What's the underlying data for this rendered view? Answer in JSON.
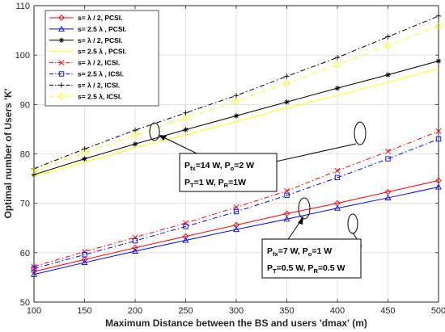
{
  "chart_data": {
    "type": "line",
    "xlabel": "Maximum Distance between the BS and users 'dmax' (m)",
    "ylabel": "Optimal number of Users 'K'",
    "xlim": [
      100,
      500
    ],
    "ylim": [
      50,
      110
    ],
    "xticks": [
      100,
      150,
      200,
      250,
      300,
      350,
      400,
      450,
      500
    ],
    "yticks": [
      50,
      60,
      70,
      80,
      90,
      100,
      110
    ],
    "xtick_labels": [
      "100",
      "150",
      "200",
      "250",
      "300",
      "350",
      "400",
      "450",
      "500"
    ],
    "ytick_labels": [
      "50",
      "60",
      "70",
      "80",
      "90",
      "100",
      "110"
    ],
    "grid": true,
    "legend_position": "top-left",
    "x": [
      100,
      150,
      200,
      250,
      300,
      350,
      400,
      450,
      500
    ],
    "series": [
      {
        "name": "s= λ / 2, PCSI.",
        "color": "#ff0000",
        "dash": "solid",
        "marker": "diamond",
        "values": [
          56.2,
          58.6,
          61.0,
          63.3,
          65.6,
          67.9,
          70.0,
          72.3,
          74.6
        ]
      },
      {
        "name": "s= 2.5 λ , PCSI.",
        "color": "#0000ff",
        "dash": "solid",
        "marker": "triangle",
        "values": [
          55.6,
          58.0,
          60.3,
          62.5,
          64.7,
          66.8,
          69.0,
          71.1,
          73.3
        ]
      },
      {
        "name": "s= λ / 2, PCSI.",
        "color": "#000000",
        "dash": "solid",
        "marker": "star",
        "values": [
          75.8,
          79.0,
          82.0,
          84.9,
          87.7,
          90.5,
          93.3,
          96.0,
          98.8
        ]
      },
      {
        "name": "s= 2.5 λ , PCSI.",
        "color": "#ffff00",
        "dash": "solid",
        "marker": "none",
        "values": [
          75.5,
          78.3,
          81.2,
          83.8,
          86.5,
          89.3,
          91.8,
          94.5,
          97.2
        ]
      },
      {
        "name": "s= λ / 2, ICSI.",
        "color": "#ff0000",
        "dash": "dashdot",
        "marker": "x",
        "values": [
          57.2,
          60.2,
          63.1,
          66.0,
          69.2,
          72.5,
          76.6,
          80.5,
          84.6
        ]
      },
      {
        "name": "s= 2.5 λ , ICSI.",
        "color": "#0000ff",
        "dash": "dashdot",
        "marker": "square",
        "values": [
          56.8,
          59.6,
          62.4,
          65.3,
          68.3,
          71.6,
          75.2,
          79.0,
          83.0
        ]
      },
      {
        "name": "s= λ / 2, ICSI.",
        "color": "#000000",
        "dash": "dashdot",
        "marker": "plus",
        "values": [
          77.0,
          81.0,
          84.8,
          88.3,
          91.8,
          95.7,
          99.5,
          103.7,
          107.9
        ]
      },
      {
        "name": "s= 2.5 λ, ICSI.",
        "color": "#ffff00",
        "dash": "dashdot",
        "marker": "circle",
        "values": [
          76.5,
          80.2,
          83.8,
          87.2,
          90.6,
          94.2,
          98.0,
          101.9,
          105.9
        ]
      }
    ],
    "annotations": [
      {
        "line1_main": "P",
        "line1_sub1": "fx",
        "line1_mid": "=14 W, P",
        "line1_sub2": "o",
        "line1_end": "=2 W",
        "line2_main": "P",
        "line2_sub1": "T",
        "line2_mid": "=1 W, P",
        "line2_sub2": "R",
        "line2_end": "=1W"
      },
      {
        "line1_main": "P",
        "line1_sub1": "fx",
        "line1_mid": "=7 W, P",
        "line1_sub2": "o",
        "line1_end": "=1 W",
        "line2_main": "P",
        "line2_sub1": "T",
        "line2_mid": "=0.5 W, P",
        "line2_sub2": "R",
        "line2_end": "=0.5 W"
      }
    ]
  }
}
